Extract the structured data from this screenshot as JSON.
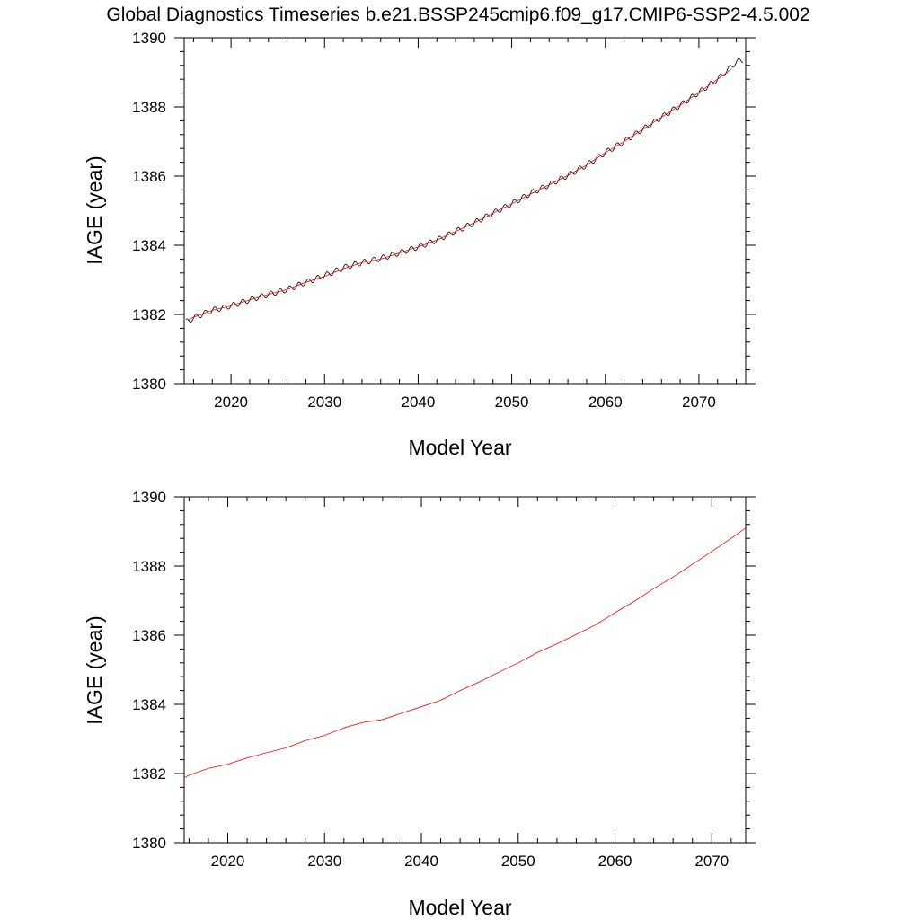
{
  "figure": {
    "title": "Global Diagnostics Timeseries b.e21.BSSP245cmip6.f09_g17.CMIP6-SSP2-4.5.002"
  },
  "colors": {
    "raw": "#000000",
    "smoothed": "#ff0000"
  },
  "chart_data": [
    {
      "type": "line",
      "xlabel": "Model Year",
      "ylabel": "IAGE (year)",
      "xlim": [
        2015,
        2075
      ],
      "ylim": [
        1380,
        1390
      ],
      "x_ticks": [
        2020,
        2030,
        2040,
        2050,
        2060,
        2070
      ],
      "x_tick_labels": [
        "2020",
        "2030",
        "2040",
        "2050",
        "2060",
        "2070"
      ],
      "y_ticks": [
        1380,
        1382,
        1384,
        1386,
        1388,
        1390
      ],
      "y_tick_labels": [
        "1380",
        "1382",
        "1384",
        "1386",
        "1388",
        "1390"
      ],
      "grid": false,
      "seasonal_cycle_amplitude": 0.08,
      "series": [
        {
          "color": "#000000",
          "style": "raw-monthly",
          "x": [
            2015.2,
            2016,
            2018,
            2020,
            2022,
            2024,
            2026,
            2028,
            2030,
            2032,
            2034,
            2036,
            2038,
            2040,
            2042,
            2044,
            2046,
            2048,
            2050,
            2052,
            2054,
            2056,
            2058,
            2060,
            2062,
            2064,
            2066,
            2068,
            2070,
            2072,
            2074,
            2074.7
          ],
          "values": [
            1381.78,
            1381.9,
            1382.12,
            1382.25,
            1382.42,
            1382.58,
            1382.72,
            1382.93,
            1383.12,
            1383.35,
            1383.5,
            1383.62,
            1383.78,
            1383.95,
            1384.15,
            1384.4,
            1384.65,
            1384.93,
            1385.2,
            1385.5,
            1385.75,
            1386.02,
            1386.32,
            1386.68,
            1387.0,
            1387.35,
            1387.7,
            1388.05,
            1388.42,
            1388.8,
            1389.3,
            1389.35
          ]
        },
        {
          "color": "#ff0000",
          "style": "annual-mean",
          "x": [
            2015.5,
            2016,
            2018,
            2020,
            2022,
            2024,
            2026,
            2028,
            2030,
            2032,
            2034,
            2036,
            2038,
            2040,
            2042,
            2044,
            2046,
            2048,
            2050,
            2052,
            2054,
            2056,
            2058,
            2060,
            2062,
            2064,
            2066,
            2068,
            2070,
            2072,
            2073.5
          ],
          "values": [
            1381.85,
            1381.92,
            1382.12,
            1382.25,
            1382.42,
            1382.58,
            1382.72,
            1382.93,
            1383.1,
            1383.32,
            1383.5,
            1383.6,
            1383.78,
            1383.95,
            1384.15,
            1384.4,
            1384.65,
            1384.93,
            1385.2,
            1385.48,
            1385.75,
            1386.02,
            1386.32,
            1386.68,
            1387.0,
            1387.35,
            1387.7,
            1388.05,
            1388.42,
            1388.8,
            1389.1
          ]
        }
      ]
    },
    {
      "type": "line",
      "xlabel": "Model Year",
      "ylabel": "IAGE (year)",
      "xlim": [
        2015.5,
        2073.5
      ],
      "ylim": [
        1380,
        1390
      ],
      "x_ticks": [
        2020,
        2030,
        2040,
        2050,
        2060,
        2070
      ],
      "x_tick_labels": [
        "2020",
        "2030",
        "2040",
        "2050",
        "2060",
        "2070"
      ],
      "y_ticks": [
        1380,
        1382,
        1384,
        1386,
        1388,
        1390
      ],
      "y_tick_labels": [
        "1380",
        "1382",
        "1384",
        "1386",
        "1388",
        "1390"
      ],
      "grid": false,
      "series": [
        {
          "color": "#ff0000",
          "style": "annual-mean",
          "x": [
            2015.5,
            2016,
            2018,
            2020,
            2022,
            2024,
            2026,
            2028,
            2030,
            2032,
            2034,
            2036,
            2038,
            2040,
            2042,
            2044,
            2046,
            2048,
            2050,
            2052,
            2054,
            2056,
            2058,
            2060,
            2062,
            2064,
            2066,
            2068,
            2070,
            2072,
            2073.5
          ],
          "values": [
            1381.88,
            1381.95,
            1382.15,
            1382.27,
            1382.45,
            1382.6,
            1382.74,
            1382.95,
            1383.1,
            1383.32,
            1383.48,
            1383.56,
            1383.75,
            1383.93,
            1384.12,
            1384.4,
            1384.65,
            1384.93,
            1385.2,
            1385.5,
            1385.75,
            1386.02,
            1386.3,
            1386.65,
            1386.98,
            1387.35,
            1387.68,
            1388.05,
            1388.42,
            1388.8,
            1389.1
          ]
        }
      ]
    }
  ]
}
